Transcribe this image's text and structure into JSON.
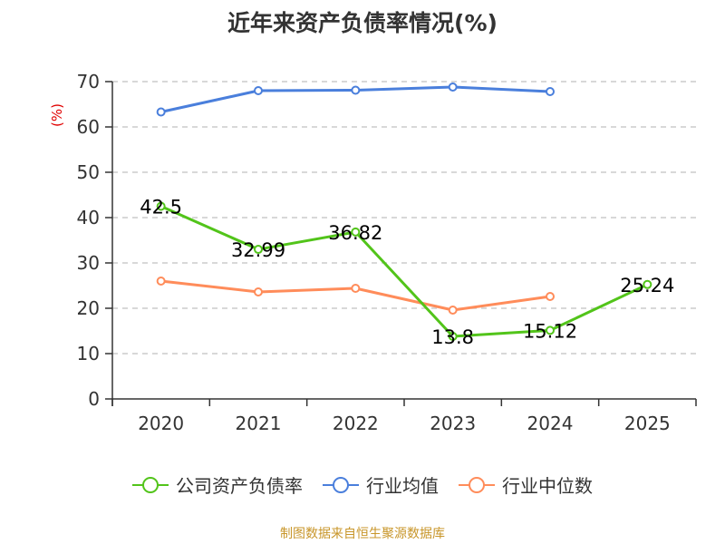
{
  "title": "近年来资产负债率情况(%)",
  "source": "制图数据来自恒生聚源数据库",
  "y_axis_unit": "(%)",
  "legend": [
    {
      "label": "公司资产负债率",
      "color": "#52c41a"
    },
    {
      "label": "行业均值",
      "color": "#4a7fdc"
    },
    {
      "label": "行业中位数",
      "color": "#ff8c5a"
    }
  ],
  "chart_data": {
    "type": "line",
    "title": "近年来资产负债率情况(%)",
    "xlabel": "",
    "ylabel": "(%)",
    "categories": [
      "2020",
      "2021",
      "2022",
      "2023",
      "2024",
      "2025"
    ],
    "ylim": [
      0,
      70
    ],
    "yticks": [
      0,
      10,
      20,
      30,
      40,
      50,
      60,
      70
    ],
    "grid": true,
    "legend_position": "bottom",
    "series": [
      {
        "name": "公司资产负债率",
        "color": "#52c41a",
        "values": [
          42.5,
          32.99,
          36.82,
          13.8,
          15.12,
          25.24
        ],
        "labels": [
          "42.5",
          "32.99",
          "36.82",
          "13.8",
          "15.12",
          "25.24"
        ]
      },
      {
        "name": "行业均值",
        "color": "#4a7fdc",
        "values": [
          63.3,
          68.0,
          68.1,
          68.8,
          67.8,
          null
        ]
      },
      {
        "name": "行业中位数",
        "color": "#ff8c5a",
        "values": [
          26.0,
          23.6,
          24.4,
          19.6,
          22.6,
          null
        ]
      }
    ]
  }
}
